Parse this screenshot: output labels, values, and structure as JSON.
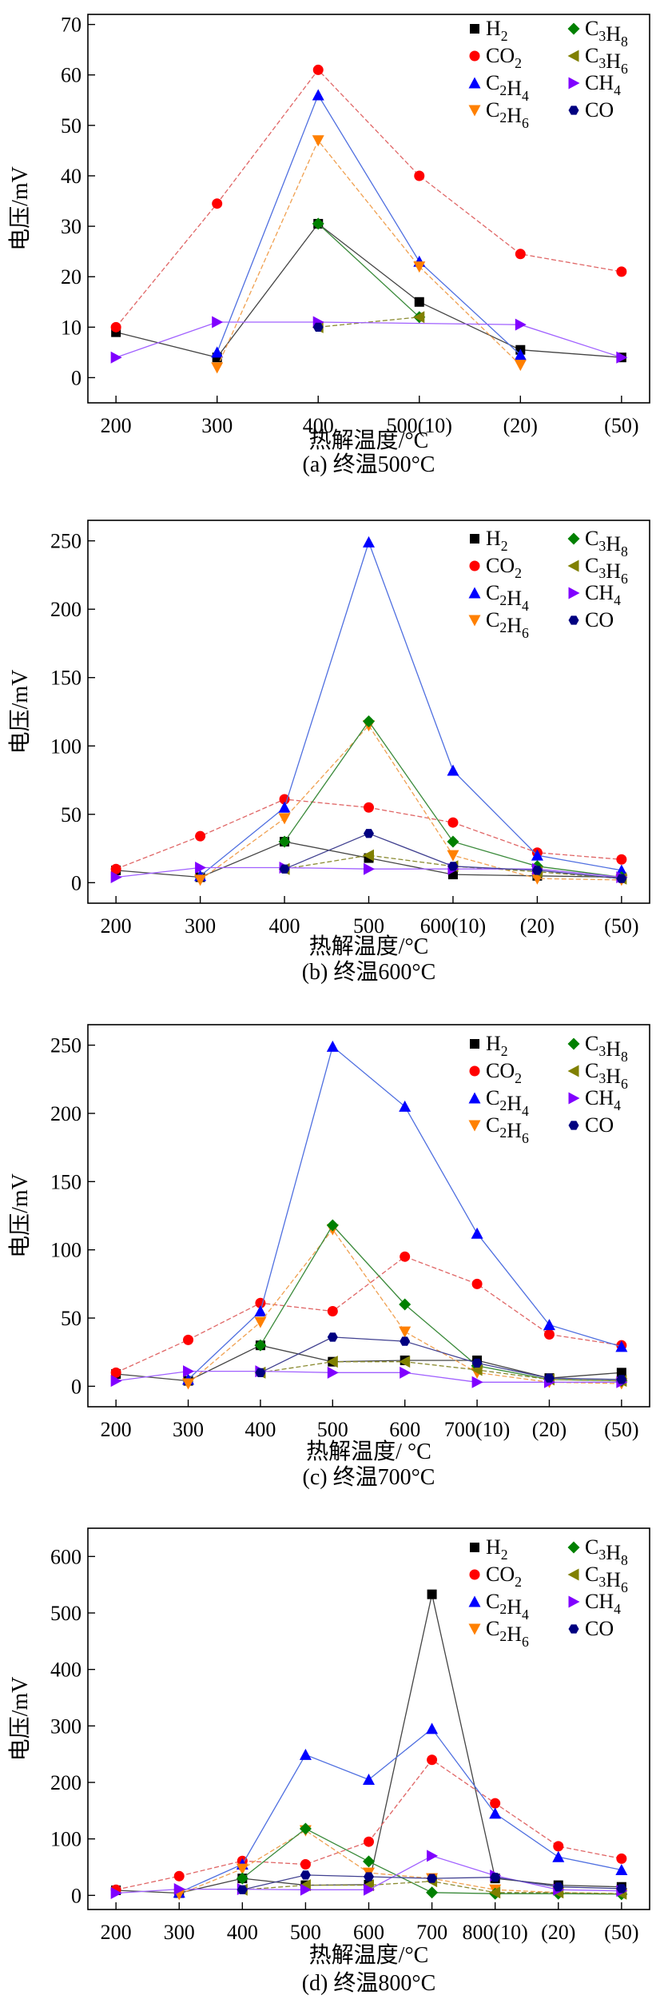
{
  "chart_data": [
    {
      "type": "line",
      "title": "(a) 终温500°C",
      "xlabel": "热解温度/°C",
      "ylabel": "电压/mV",
      "categories": [
        "200",
        "300",
        "400",
        "500(10)",
        "(20)",
        "(50)"
      ],
      "ylim": [
        -5,
        72
      ],
      "yticks": [
        0,
        10,
        20,
        30,
        40,
        50,
        60,
        70
      ],
      "series": [
        {
          "name": "H2",
          "values": [
            9,
            4,
            30.5,
            15,
            5.5,
            4
          ]
        },
        {
          "name": "CO2",
          "values": [
            10,
            34.5,
            61,
            40,
            24.5,
            21
          ]
        },
        {
          "name": "C2H4",
          "values": [
            null,
            5,
            56,
            23,
            4.5,
            null
          ]
        },
        {
          "name": "C2H6",
          "values": [
            null,
            2,
            47,
            22,
            2.5,
            null
          ]
        },
        {
          "name": "C3H8",
          "values": [
            null,
            null,
            30.5,
            12,
            null,
            null
          ]
        },
        {
          "name": "C3H6",
          "values": [
            null,
            null,
            10,
            12,
            null,
            null
          ]
        },
        {
          "name": "CH4",
          "values": [
            4,
            11,
            11,
            null,
            10.5,
            4
          ]
        },
        {
          "name": "CO",
          "values": [
            null,
            null,
            10,
            null,
            null,
            null
          ]
        }
      ]
    },
    {
      "type": "line",
      "title": "(b) 终温600°C",
      "xlabel": "热解温度/°C",
      "ylabel": "电压/mV",
      "categories": [
        "200",
        "300",
        "400",
        "500",
        "600(10)",
        "(20)",
        "(50)"
      ],
      "ylim": [
        -15,
        265
      ],
      "yticks": [
        0,
        50,
        100,
        150,
        200,
        250
      ],
      "series": [
        {
          "name": "H2",
          "values": [
            9,
            4,
            30,
            18,
            6,
            5,
            4
          ]
        },
        {
          "name": "CO2",
          "values": [
            10,
            34,
            61,
            55,
            44,
            22,
            17
          ]
        },
        {
          "name": "C2H4",
          "values": [
            null,
            5,
            55,
            249,
            82,
            20,
            9
          ]
        },
        {
          "name": "C2H6",
          "values": [
            null,
            2,
            47,
            115,
            20,
            3,
            2
          ]
        },
        {
          "name": "C3H8",
          "values": [
            null,
            null,
            30,
            118,
            30,
            12,
            4
          ]
        },
        {
          "name": "C3H6",
          "values": [
            null,
            null,
            10,
            20,
            12,
            8,
            3
          ]
        },
        {
          "name": "CH4",
          "values": [
            4,
            11,
            11,
            10,
            10,
            10,
            4
          ]
        },
        {
          "name": "CO",
          "values": [
            null,
            null,
            10,
            36,
            12,
            9,
            3
          ]
        }
      ]
    },
    {
      "type": "line",
      "title": "(c) 终温700°C",
      "xlabel": "热解温度/ °C",
      "ylabel": "电压/mV",
      "categories": [
        "200",
        "300",
        "400",
        "500",
        "600",
        "700(10)",
        "(20)",
        "(50)"
      ],
      "ylim": [
        -15,
        265
      ],
      "yticks": [
        0,
        50,
        100,
        150,
        200,
        250
      ],
      "series": [
        {
          "name": "H2",
          "values": [
            9,
            4,
            30,
            18,
            19,
            19,
            6,
            10
          ]
        },
        {
          "name": "CO2",
          "values": [
            10,
            34,
            61,
            55,
            95,
            75,
            38,
            30
          ]
        },
        {
          "name": "C2H4",
          "values": [
            null,
            5,
            55,
            249,
            205,
            112,
            45,
            29
          ]
        },
        {
          "name": "C2H6",
          "values": [
            null,
            2,
            47,
            115,
            40,
            10,
            3,
            2
          ]
        },
        {
          "name": "C3H8",
          "values": [
            null,
            null,
            30,
            118,
            60,
            15,
            5,
            4
          ]
        },
        {
          "name": "C3H6",
          "values": [
            null,
            null,
            10,
            18,
            18,
            12,
            5,
            4
          ]
        },
        {
          "name": "CH4",
          "values": [
            4,
            11,
            11,
            10,
            10,
            3,
            3,
            3
          ]
        },
        {
          "name": "CO",
          "values": [
            null,
            null,
            10,
            36,
            33,
            17,
            6,
            5
          ]
        }
      ]
    },
    {
      "type": "line",
      "title": "(d) 终温800°C",
      "xlabel": "热解温度/°C",
      "ylabel": "电压/mV",
      "categories": [
        "200",
        "300",
        "400",
        "500",
        "600",
        "700",
        "800(10)",
        "(20)",
        "(50)"
      ],
      "ylim": [
        -25,
        650
      ],
      "yticks": [
        0,
        100,
        200,
        300,
        400,
        500,
        600
      ],
      "series": [
        {
          "name": "H2",
          "values": [
            9,
            4,
            30,
            18,
            19,
            533,
            30,
            18,
            15
          ]
        },
        {
          "name": "CO2",
          "values": [
            10,
            34,
            61,
            55,
            95,
            240,
            163,
            87,
            65
          ]
        },
        {
          "name": "C2H4",
          "values": [
            null,
            5,
            55,
            249,
            205,
            295,
            145,
            68,
            45
          ]
        },
        {
          "name": "C2H6",
          "values": [
            null,
            2,
            47,
            115,
            40,
            30,
            10,
            5,
            3
          ]
        },
        {
          "name": "C3H8",
          "values": [
            null,
            null,
            30,
            118,
            60,
            5,
            3,
            3,
            2
          ]
        },
        {
          "name": "C3H6",
          "values": [
            null,
            null,
            10,
            18,
            18,
            25,
            5,
            5,
            3
          ]
        },
        {
          "name": "CH4",
          "values": [
            4,
            11,
            11,
            10,
            10,
            70,
            35,
            10,
            8
          ]
        },
        {
          "name": "CO",
          "values": [
            null,
            null,
            10,
            36,
            33,
            30,
            32,
            15,
            12
          ]
        }
      ]
    }
  ],
  "legend_labels": [
    "H2",
    "CO2",
    "C2H4",
    "C2H6",
    "C3H8",
    "C3H6",
    "CH4",
    "CO"
  ],
  "series_styles": [
    {
      "name": "H2",
      "color": "#000000",
      "line": "#444444",
      "marker": "square",
      "dash": false
    },
    {
      "name": "CO2",
      "color": "#ff0000",
      "line": "#e06666",
      "marker": "circle",
      "dash": true
    },
    {
      "name": "C2H4",
      "color": "#0000ff",
      "line": "#4f6fe0",
      "marker": "triangle-up",
      "dash": false
    },
    {
      "name": "C2H6",
      "color": "#ff8000",
      "line": "#f0a050",
      "marker": "triangle-down",
      "dash": true
    },
    {
      "name": "C3H8",
      "color": "#008000",
      "line": "#3a8a3a",
      "marker": "diamond",
      "dash": false
    },
    {
      "name": "C3H6",
      "color": "#808000",
      "line": "#8a8a30",
      "marker": "triangle-left",
      "dash": true
    },
    {
      "name": "CH4",
      "color": "#8000ff",
      "line": "#a060ff",
      "marker": "triangle-right",
      "dash": false
    },
    {
      "name": "CO",
      "color": "#000080",
      "line": "#404090",
      "marker": "hexagon",
      "dash": false
    }
  ]
}
